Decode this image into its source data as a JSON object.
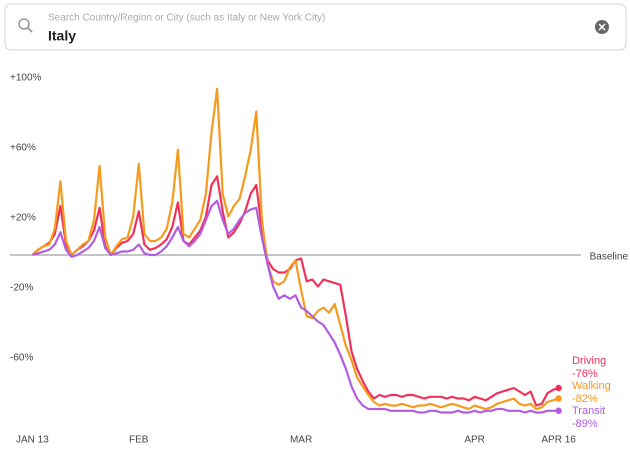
{
  "search": {
    "placeholder": "Search Country/Region or City (such as Italy or New York City)",
    "value": "Italy"
  },
  "chart_data": {
    "type": "line",
    "x": [
      0,
      1,
      2,
      3,
      4,
      5,
      6,
      7,
      8,
      9,
      10,
      11,
      12,
      13,
      14,
      15,
      16,
      17,
      18,
      19,
      20,
      21,
      22,
      23,
      24,
      25,
      26,
      27,
      28,
      29,
      30,
      31,
      32,
      33,
      34,
      35,
      36,
      37,
      38,
      39,
      40,
      41,
      42,
      43,
      44,
      45,
      46,
      47,
      48,
      49,
      50,
      51,
      52,
      53,
      54,
      55,
      56,
      57,
      58,
      59,
      60,
      61,
      62,
      63,
      64,
      65,
      66,
      67,
      68,
      69,
      70,
      71,
      72,
      73,
      74,
      75,
      76,
      77,
      78,
      79,
      80,
      81,
      82,
      83,
      84,
      85,
      86,
      87,
      88,
      89,
      90,
      91,
      92,
      93,
      94
    ],
    "xlim": [
      -4,
      98
    ],
    "xticks": [
      {
        "value": 0,
        "label": "JAN 13"
      },
      {
        "value": 19,
        "label": "FEB"
      },
      {
        "value": 48,
        "label": "MAR"
      },
      {
        "value": 79,
        "label": "APR"
      },
      {
        "value": 94,
        "label": "APR 16"
      }
    ],
    "ylim": [
      -100,
      100
    ],
    "yticks": [
      {
        "value": 100,
        "label": "+100%"
      },
      {
        "value": 60,
        "label": "+60%"
      },
      {
        "value": 20,
        "label": "+20%"
      },
      {
        "value": -20,
        "label": "-20%"
      },
      {
        "value": -60,
        "label": "-60%"
      }
    ],
    "baseline": {
      "value": 0,
      "label": "Baseline"
    },
    "series": [
      {
        "name": "Driving",
        "color": "#f0325a",
        "end_label": "-76%",
        "values": [
          0,
          3,
          5,
          7,
          12,
          28,
          6,
          0,
          3,
          5,
          8,
          14,
          27,
          5,
          0,
          4,
          7,
          8,
          12,
          25,
          6,
          3,
          4,
          6,
          9,
          16,
          30,
          8,
          6,
          10,
          14,
          22,
          40,
          45,
          25,
          10,
          13,
          18,
          25,
          35,
          40,
          15,
          -3,
          -8,
          -10,
          -10,
          -8,
          -3,
          -2,
          -15,
          -14,
          -18,
          -14,
          -15,
          -16,
          -17,
          -35,
          -55,
          -65,
          -72,
          -78,
          -82,
          -80,
          -81,
          -80,
          -80,
          -81,
          -80,
          -80,
          -81,
          -82,
          -81,
          -81,
          -81,
          -82,
          -81,
          -82,
          -82,
          -83,
          -81,
          -82,
          -83,
          -81,
          -79,
          -78,
          -77,
          -76,
          -78,
          -80,
          -78,
          -86,
          -85,
          -79,
          -77,
          -76
        ]
      },
      {
        "name": "Walking",
        "color": "#f59a1c",
        "end_label": "-82%",
        "values": [
          0,
          3,
          5,
          6,
          15,
          42,
          8,
          0,
          3,
          6,
          8,
          20,
          51,
          10,
          0,
          5,
          9,
          10,
          22,
          52,
          12,
          8,
          8,
          10,
          15,
          30,
          60,
          12,
          10,
          15,
          20,
          35,
          70,
          95,
          35,
          22,
          28,
          32,
          45,
          60,
          82,
          20,
          -5,
          -15,
          -17,
          -15,
          -7,
          -3,
          -20,
          -35,
          -36,
          -32,
          -30,
          -33,
          -28,
          -40,
          -52,
          -60,
          -70,
          -75,
          -80,
          -84,
          -86,
          -85,
          -86,
          -86,
          -85,
          -86,
          -87,
          -86,
          -86,
          -85,
          -86,
          -87,
          -86,
          -85,
          -86,
          -87,
          -88,
          -86,
          -87,
          -88,
          -87,
          -85,
          -84,
          -83,
          -82,
          -85,
          -86,
          -85,
          -88,
          -87,
          -84,
          -83,
          -82
        ]
      },
      {
        "name": "Transit",
        "color": "#b25ce0",
        "end_label": "-89%",
        "values": [
          0,
          1,
          2,
          3,
          6,
          13,
          3,
          -1,
          0,
          2,
          4,
          8,
          16,
          4,
          0,
          1,
          2,
          2,
          3,
          6,
          1,
          0,
          0,
          2,
          5,
          10,
          16,
          8,
          5,
          8,
          12,
          20,
          28,
          31,
          20,
          12,
          15,
          20,
          24,
          26,
          27,
          10,
          -5,
          -18,
          -25,
          -23,
          -25,
          -23,
          -30,
          -32,
          -35,
          -38,
          -40,
          -45,
          -50,
          -57,
          -65,
          -75,
          -82,
          -86,
          -88,
          -88,
          -88,
          -88,
          -89,
          -89,
          -89,
          -89,
          -89,
          -90,
          -90,
          -89,
          -89,
          -90,
          -90,
          -90,
          -89,
          -90,
          -90,
          -89,
          -90,
          -89,
          -89,
          -88,
          -88,
          -89,
          -89,
          -89,
          -90,
          -89,
          -90,
          -90,
          -89,
          -89,
          -89
        ]
      }
    ]
  }
}
